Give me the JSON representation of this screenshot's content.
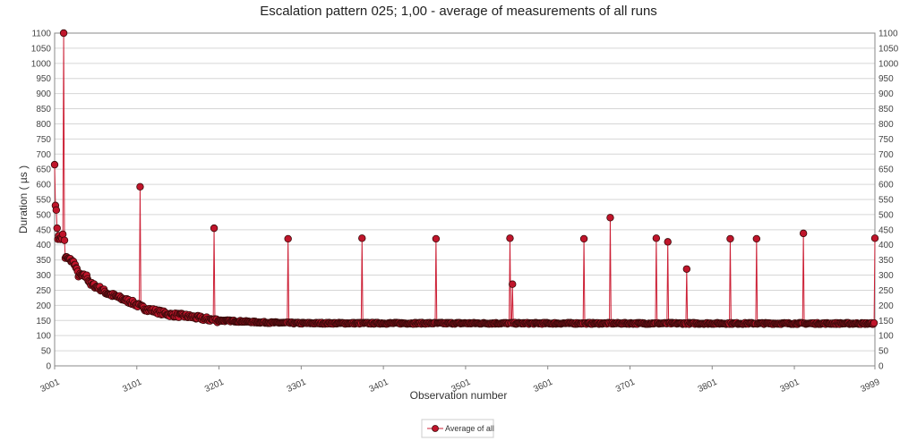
{
  "chart_data": {
    "type": "line",
    "title": "Escalation pattern 025; 1,00 - average of measurements of all runs",
    "xlabel": "Observation number",
    "ylabel": "Duration ( µs )",
    "xlim": [
      3001,
      3999
    ],
    "ylim": [
      0,
      1100
    ],
    "x_ticks": [
      "3001",
      "3101",
      "3201",
      "3301",
      "3401",
      "3501",
      "3601",
      "3701",
      "3801",
      "3901",
      "3999"
    ],
    "y_ticks": [
      "0",
      "50",
      "100",
      "150",
      "200",
      "250",
      "300",
      "350",
      "400",
      "450",
      "500",
      "550",
      "600",
      "650",
      "700",
      "750",
      "800",
      "850",
      "900",
      "950",
      "1000",
      "1050",
      "1100"
    ],
    "grid": true,
    "legend_position": "bottom-center",
    "colors": {
      "line": "#cc1f35",
      "marker_fill": "#c0152b",
      "marker_stroke": "#3a0a0a"
    },
    "baseline": {
      "description_points": [
        [
          3001,
          430
        ],
        [
          3010,
          420
        ],
        [
          3013,
          360
        ],
        [
          3020,
          350
        ],
        [
          3025,
          340
        ],
        [
          3030,
          300
        ],
        [
          3040,
          295
        ],
        [
          3045,
          270
        ],
        [
          3055,
          258
        ],
        [
          3065,
          240
        ],
        [
          3080,
          225
        ],
        [
          3095,
          210
        ],
        [
          3110,
          190
        ],
        [
          3125,
          180
        ],
        [
          3140,
          170
        ],
        [
          3160,
          165
        ],
        [
          3185,
          155
        ],
        [
          3200,
          150
        ],
        [
          3220,
          148
        ],
        [
          3250,
          144
        ],
        [
          3300,
          141
        ],
        [
          3999,
          140
        ]
      ]
    },
    "series": [
      {
        "name": "Average of all",
        "spikes": [
          {
            "x": 3001,
            "y": 665
          },
          {
            "x": 3002,
            "y": 530
          },
          {
            "x": 3003,
            "y": 515
          },
          {
            "x": 3004,
            "y": 455
          },
          {
            "x": 3012,
            "y": 1100
          },
          {
            "x": 3011,
            "y": 435
          },
          {
            "x": 3013,
            "y": 415
          },
          {
            "x": 3105,
            "y": 592
          },
          {
            "x": 3195,
            "y": 455
          },
          {
            "x": 3285,
            "y": 420
          },
          {
            "x": 3375,
            "y": 422
          },
          {
            "x": 3465,
            "y": 420
          },
          {
            "x": 3555,
            "y": 422
          },
          {
            "x": 3558,
            "y": 270
          },
          {
            "x": 3645,
            "y": 420
          },
          {
            "x": 3677,
            "y": 490
          },
          {
            "x": 3733,
            "y": 422
          },
          {
            "x": 3747,
            "y": 410
          },
          {
            "x": 3770,
            "y": 320
          },
          {
            "x": 3823,
            "y": 420
          },
          {
            "x": 3855,
            "y": 420
          },
          {
            "x": 3912,
            "y": 438
          },
          {
            "x": 3999,
            "y": 422
          }
        ]
      }
    ]
  }
}
